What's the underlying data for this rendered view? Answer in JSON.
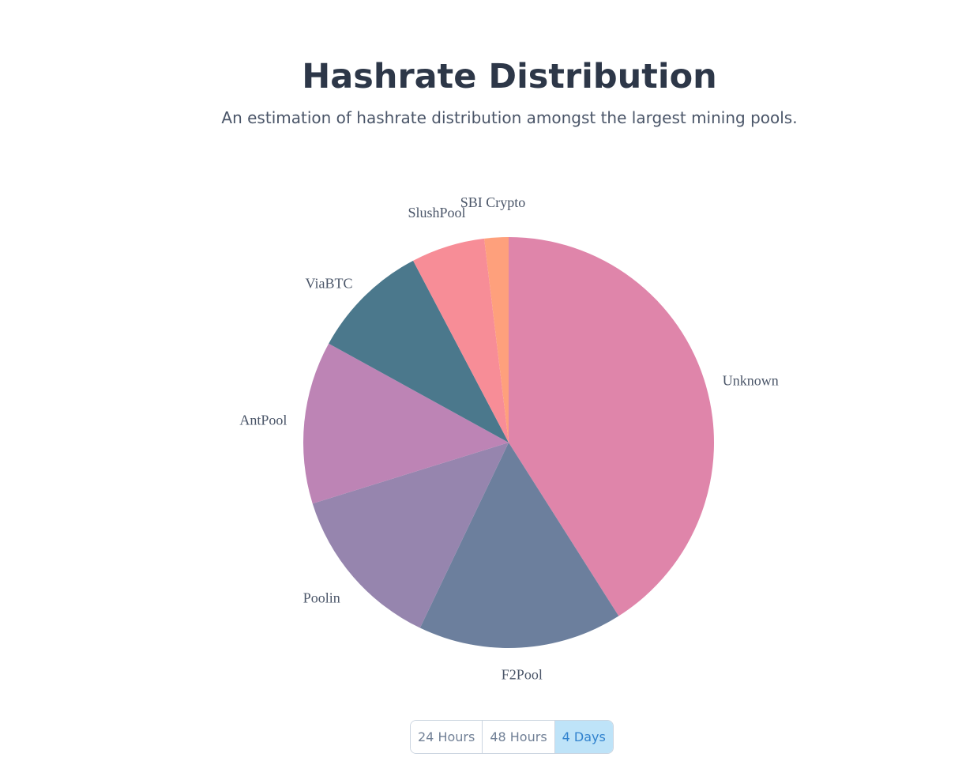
{
  "header": {
    "title": "Hashrate Distribution",
    "subtitle": "An estimation of hashrate distribution amongst the largest mining pools."
  },
  "chart_data": {
    "type": "pie",
    "title": "Hashrate Distribution",
    "start": "top, clockwise",
    "slices": [
      {
        "label": "Unknown",
        "value": 41.0,
        "color": "#df85aa"
      },
      {
        "label": "F2Pool",
        "value": 16.1,
        "color": "#6c7f9d"
      },
      {
        "label": "Poolin",
        "value": 13.1,
        "color": "#9685ae"
      },
      {
        "label": "AntPool",
        "value": 12.8,
        "color": "#bd84b5"
      },
      {
        "label": "ViaBTC",
        "value": 9.3,
        "color": "#4b788c"
      },
      {
        "label": "SlushPool",
        "value": 5.8,
        "color": "#f78d97"
      },
      {
        "label": "SBI Crypto",
        "value": 1.9,
        "color": "#fea07c"
      }
    ]
  },
  "range_buttons": [
    {
      "label": "24 Hours",
      "active": false
    },
    {
      "label": "48 Hours",
      "active": false
    },
    {
      "label": "4 Days",
      "active": true
    }
  ]
}
